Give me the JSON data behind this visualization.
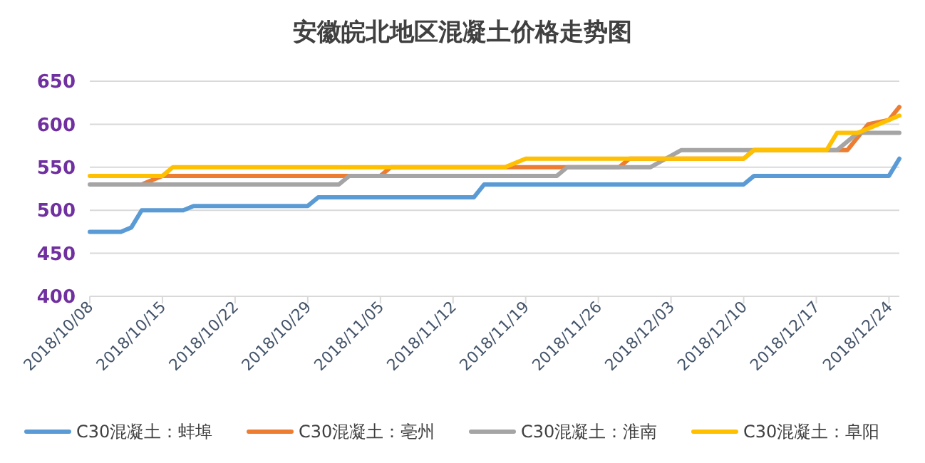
{
  "chart_data": {
    "type": "line",
    "title": "安徽皖北地区混凝土价格走势图",
    "xlim": [
      "2018-10-08",
      "2018-12-25"
    ],
    "xticks": [
      {
        "value": "2018-10-08",
        "label": "2018/10/08"
      },
      {
        "value": "2018-10-15",
        "label": "2018/10/15"
      },
      {
        "value": "2018-10-22",
        "label": "2018/10/22"
      },
      {
        "value": "2018-10-29",
        "label": "2018/10/29"
      },
      {
        "value": "2018-11-05",
        "label": "2018/11/05"
      },
      {
        "value": "2018-11-12",
        "label": "2018/11/12"
      },
      {
        "value": "2018-11-19",
        "label": "2018/11/19"
      },
      {
        "value": "2018-11-26",
        "label": "2018/11/26"
      },
      {
        "value": "2018-12-03",
        "label": "2018/12/03"
      },
      {
        "value": "2018-12-10",
        "label": "2018/12/10"
      },
      {
        "value": "2018-12-17",
        "label": "2018/12/17"
      },
      {
        "value": "2018-12-24",
        "label": "2018/12/24"
      }
    ],
    "ylim": [
      400,
      650
    ],
    "yticks": [
      400,
      450,
      500,
      550,
      600,
      650
    ],
    "grid": "y",
    "legend": "bottom",
    "marker": "none",
    "line_style": "solid",
    "series": [
      {
        "name": "C30混凝土：蚌埠",
        "color": "#5b9bd5",
        "x": [
          "2018-10-08",
          "2018-10-11",
          "2018-10-12",
          "2018-10-13",
          "2018-10-17",
          "2018-10-18",
          "2018-10-29",
          "2018-10-30",
          "2018-11-14",
          "2018-11-15",
          "2018-12-10",
          "2018-12-11",
          "2018-12-24",
          "2018-12-25"
        ],
        "values": [
          475,
          475,
          480,
          500,
          500,
          505,
          505,
          515,
          515,
          530,
          530,
          540,
          540,
          560
        ]
      },
      {
        "name": "C30混凝土：亳州",
        "color": "#ed7d31",
        "x": [
          "2018-10-13",
          "2018-10-15",
          "2018-11-05",
          "2018-11-06",
          "2018-11-28",
          "2018-11-29",
          "2018-12-10",
          "2018-12-11",
          "2018-12-20",
          "2018-12-22",
          "2018-12-24",
          "2018-12-25"
        ],
        "values": [
          530,
          540,
          540,
          550,
          550,
          560,
          560,
          570,
          570,
          600,
          605,
          620
        ]
      },
      {
        "name": "C30混凝土：淮南",
        "color": "#a5a5a5",
        "x": [
          "2018-10-08",
          "2018-11-01",
          "2018-11-02",
          "2018-11-22",
          "2018-11-23",
          "2018-12-01",
          "2018-12-04",
          "2018-12-19",
          "2018-12-21",
          "2018-12-25"
        ],
        "values": [
          530,
          530,
          540,
          540,
          550,
          550,
          570,
          570,
          590,
          590
        ]
      },
      {
        "name": "C30混凝土：阜阳",
        "color": "#ffc000",
        "x": [
          "2018-10-08",
          "2018-10-15",
          "2018-10-16",
          "2018-11-17",
          "2018-11-19",
          "2018-12-10",
          "2018-12-11",
          "2018-12-18",
          "2018-12-19",
          "2018-12-21",
          "2018-12-23",
          "2018-12-25"
        ],
        "values": [
          540,
          540,
          550,
          550,
          560,
          560,
          570,
          570,
          590,
          590,
          600,
          610
        ]
      }
    ]
  }
}
